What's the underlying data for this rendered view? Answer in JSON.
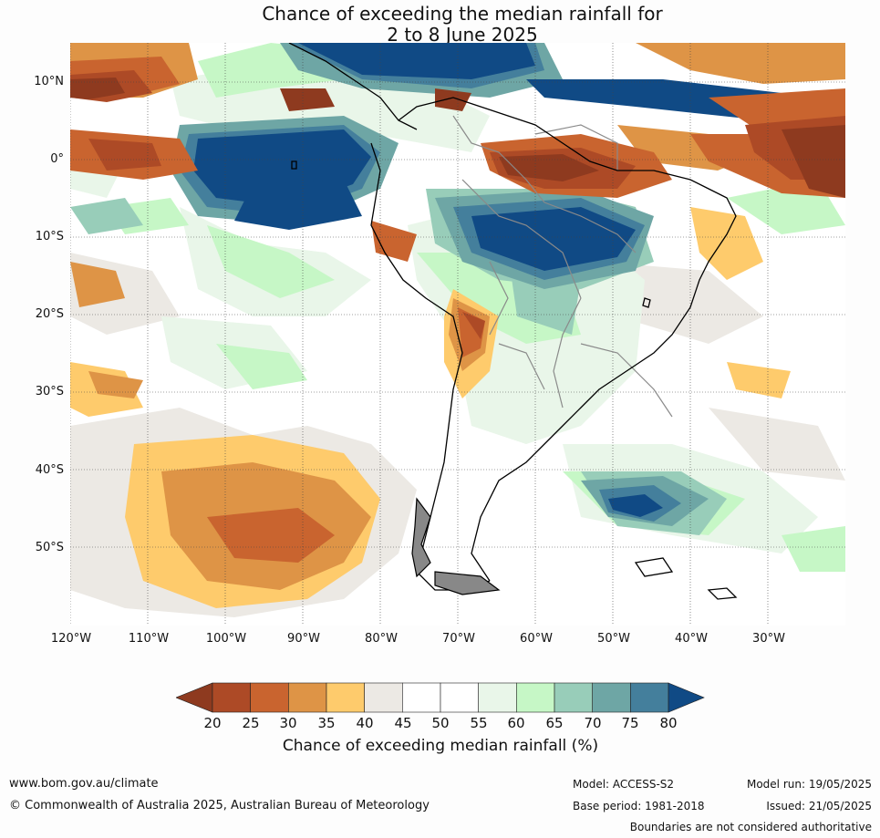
{
  "title": {
    "line1": "Chance of exceeding the median rainfall for",
    "line2": "2 to 8 June 2025"
  },
  "map": {
    "lat_labels": [
      "10°N",
      "0°",
      "10°S",
      "20°S",
      "30°S",
      "40°S",
      "50°S"
    ],
    "lon_labels": [
      "120°W",
      "110°W",
      "100°W",
      "90°W",
      "80°W",
      "70°W",
      "60°W",
      "50°W",
      "40°W",
      "30°W"
    ]
  },
  "colorbar": {
    "ticks": [
      "20",
      "25",
      "30",
      "35",
      "40",
      "45",
      "50",
      "55",
      "60",
      "65",
      "70",
      "75",
      "80"
    ],
    "colors": [
      "#8e3a1f",
      "#ad4a26",
      "#c9642f",
      "#de9446",
      "#fecb6c",
      "#ece9e4",
      "#ffffff",
      "#ffffff",
      "#e9f6e9",
      "#c6f7c6",
      "#98cdb9",
      "#6ea6a5",
      "#447f9c",
      "#104a85"
    ],
    "label": "Chance of exceeding median rainfall (%)"
  },
  "footer": {
    "website": "www.bom.gov.au/climate",
    "copyright": "© Commonwealth of Australia 2025, Australian Bureau of Meteorology",
    "model": "Model: ACCESS-S2",
    "base_period": "Base period: 1981-2018",
    "model_run": "Model run: 19/05/2025",
    "issued": "Issued: 21/05/2025",
    "boundaries": "Boundaries are not considered authoritative"
  }
}
